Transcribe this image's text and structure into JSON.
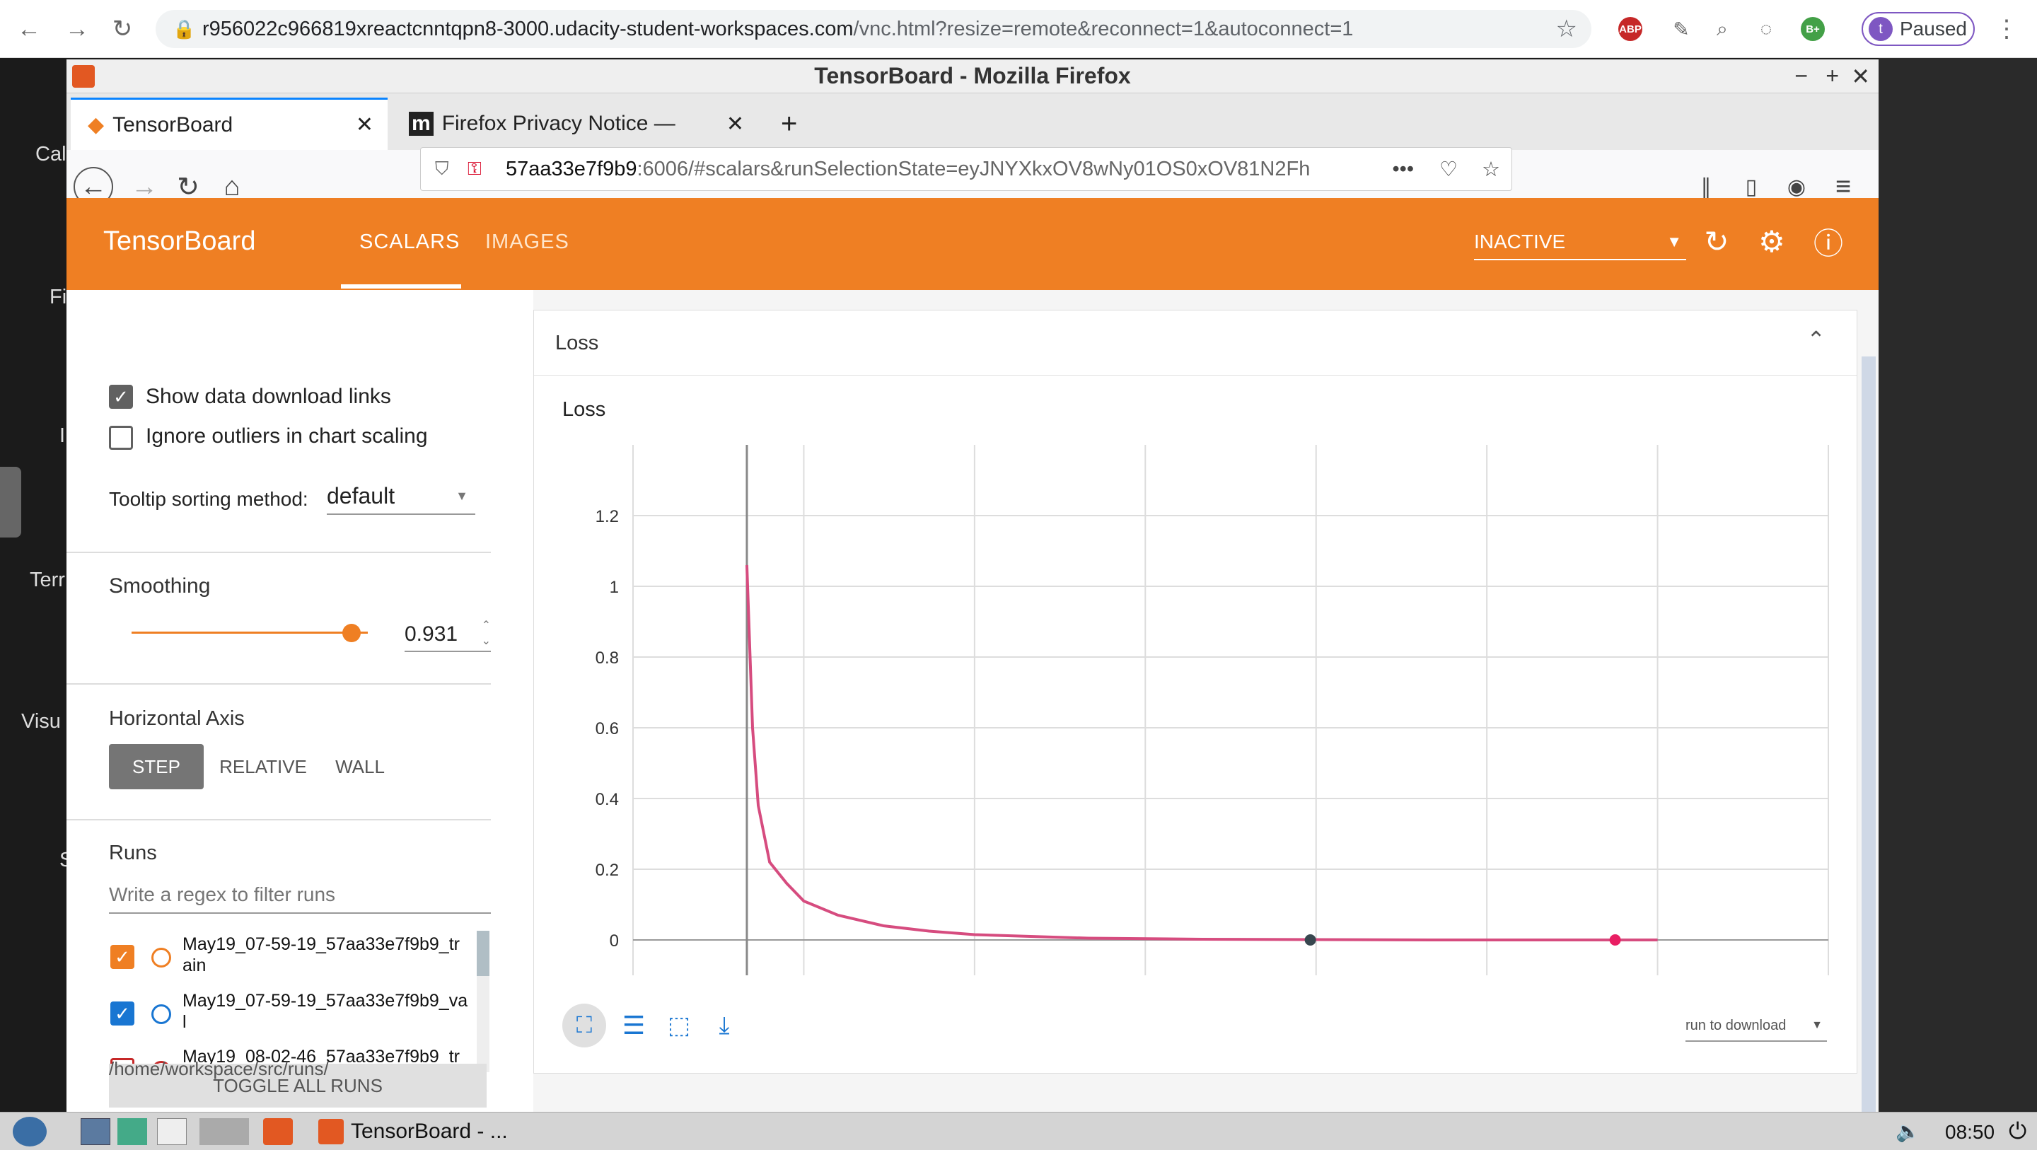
{
  "browser": {
    "url_domain": "r956022c966819xreactcnntqpn8-3000.udacity-student-workspaces.com",
    "url_path": "/vnc.html?resize=remote&reconnect=1&autoconnect=1",
    "paused_label": "Paused",
    "avatar_letter": "t",
    "ext_abp": "ABP",
    "ext_b": "B+"
  },
  "desktop": {
    "labels": [
      "Cal",
      "Fi",
      "I",
      "Terr",
      "Visu",
      "S"
    ]
  },
  "firefox": {
    "title": "TensorBoard - Mozilla Firefox",
    "tabs": [
      {
        "label": "TensorBoard"
      },
      {
        "label": "Firefox Privacy Notice —"
      }
    ],
    "url_host": "57aa33e7f9b9",
    "url_rest": ":6006/#scalars&runSelectionState=eyJNYXkxOV8wNy01OS0xOV81N2Fh"
  },
  "tensorboard": {
    "brand": "TensorBoard",
    "tabs": [
      "SCALARS",
      "IMAGES"
    ],
    "status": "INACTIVE",
    "colors": {
      "header": "#ef7f23",
      "train": "#ef7f23",
      "val": "#1976d2"
    },
    "sidebar": {
      "show_links": "Show data download links",
      "ignore_outliers": "Ignore outliers in chart scaling",
      "tooltip_label": "Tooltip sorting method:",
      "tooltip_value": "default",
      "smoothing_label": "Smoothing",
      "smoothing_value": "0.931",
      "smoothing_level": 0.931,
      "axis_label": "Horizontal Axis",
      "axis_options": [
        "STEP",
        "RELATIVE",
        "WALL"
      ],
      "runs_label": "Runs",
      "runs_placeholder": "Write a regex to filter runs",
      "runs": [
        {
          "name": "May19_07-59-19_57aa33e7f9b9_tr",
          "cont": "ain"
        },
        {
          "name": "May19_07-59-19_57aa33e7f9b9_va",
          "cont": "l"
        },
        {
          "name": "May19_08-02-46_57aa33e7f9b9_tr",
          "cont": ""
        }
      ],
      "toggle_all": "TOGGLE ALL RUNS",
      "path": "/home/workspace/src/runs/"
    },
    "card": {
      "title": "Loss",
      "chart_title": "Loss",
      "download_label": "run to download"
    }
  },
  "chart_data": {
    "type": "line",
    "title": "Loss",
    "ylim": [
      -0.1,
      1.4
    ],
    "yticks": [
      "1.2",
      "1",
      "0.8",
      "0.6",
      "0.4",
      "0.2",
      "0"
    ],
    "series": [
      {
        "x": [
          1,
          1.05,
          1.1,
          1.2,
          1.35,
          1.5,
          1.8,
          2.2,
          2.6,
          3,
          4,
          5,
          6,
          7,
          8,
          9
        ],
        "values": [
          1.06,
          0.6,
          0.38,
          0.22,
          0.16,
          0.11,
          0.07,
          0.04,
          0.025,
          0.015,
          0.005,
          0.002,
          0.001,
          0,
          0,
          0
        ]
      }
    ]
  },
  "taskbar": {
    "app_label": "TensorBoard - ...",
    "clock": "08:50"
  }
}
